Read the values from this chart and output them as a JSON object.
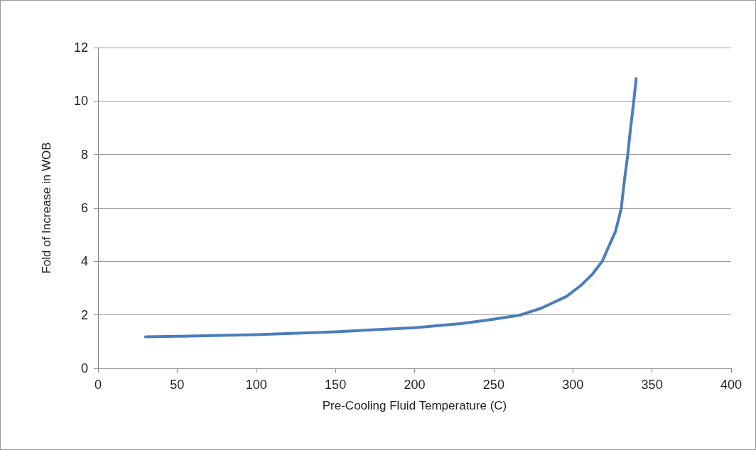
{
  "chart_data": {
    "type": "line",
    "xlabel": "Pre-Cooling Fluid Temperature (C)",
    "ylabel": "Fold of Increase in WOB",
    "x": [
      30,
      50,
      100,
      150,
      200,
      230,
      250,
      267,
      280,
      296,
      305,
      312,
      318.5,
      323,
      326.8,
      329,
      330.6,
      332.5,
      334.7,
      336.5,
      338.5,
      340
    ],
    "series": [
      {
        "color": "#4a7ebb",
        "values": [
          1.18,
          1.2,
          1.26,
          1.37,
          1.52,
          1.68,
          1.84,
          2.0,
          2.25,
          2.69,
          3.1,
          3.5,
          4.0,
          4.6,
          5.1,
          5.6,
          6.0,
          7.0,
          8.0,
          9.0,
          10.0,
          10.84
        ]
      }
    ],
    "xlim": [
      0,
      400
    ],
    "xticks": [
      0,
      50,
      100,
      150,
      200,
      250,
      300,
      350,
      400
    ],
    "ylim": [
      0,
      12
    ],
    "yticks": [
      0,
      2,
      4,
      6,
      8,
      10,
      12
    ],
    "grid": "y",
    "marker": "none",
    "line_style": "solid"
  }
}
